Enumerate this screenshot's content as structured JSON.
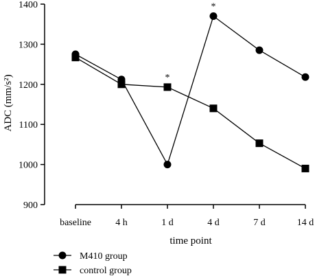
{
  "chart_data": {
    "type": "line",
    "xlabel": "time point",
    "ylabel": "ADC (mm/s²)",
    "categories": [
      "baseline",
      "4 h",
      "1 d",
      "4 d",
      "7 d",
      "14 d"
    ],
    "ylim": [
      900,
      1400
    ],
    "yticks": [
      900,
      1000,
      1100,
      1200,
      1300,
      1400
    ],
    "series": [
      {
        "name": "M410 group",
        "marker": "circle",
        "values": [
          1275,
          1212,
          1000,
          1370,
          1285,
          1218
        ]
      },
      {
        "name": "control group",
        "marker": "square",
        "values": [
          1267,
          1200,
          1193,
          1140,
          1053,
          990
        ]
      }
    ],
    "annotations": [
      {
        "category": "1 d",
        "text": "*"
      },
      {
        "category": "4 d",
        "text": "*"
      }
    ],
    "legend_position": "bottom-left",
    "grid": false,
    "colors": {
      "line": "#000000",
      "marker": "#000000"
    }
  }
}
